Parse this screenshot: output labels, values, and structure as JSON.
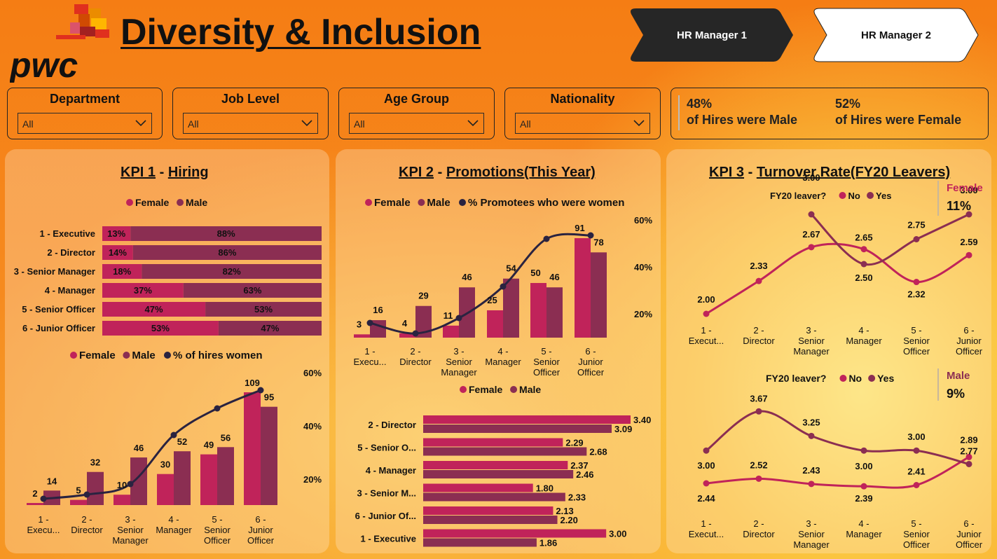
{
  "header": {
    "title": "Diversity & Inclusion",
    "logo_text": "pwc",
    "nav": [
      {
        "label": "HR Manager 1",
        "active": true
      },
      {
        "label": "HR Manager 2",
        "active": false
      }
    ]
  },
  "filters": [
    {
      "label": "Department",
      "value": "All"
    },
    {
      "label": "Job Level",
      "value": "All"
    },
    {
      "label": "Age Group",
      "value": "All"
    },
    {
      "label": "Nationality",
      "value": "All"
    }
  ],
  "hires_summary": {
    "male_pct": "48%",
    "male_text": "of Hires were Male",
    "female_pct": "52%",
    "female_text": "of Hires were Female"
  },
  "kpi1": {
    "title_prefix": "KPI 1",
    "title_sep": " - ",
    "title_main": "Hiring"
  },
  "kpi2": {
    "title_prefix": "KPI 2",
    "title_sep": " - ",
    "title_main": "Promotions(This Year)"
  },
  "kpi3": {
    "title_prefix": "KPI 3",
    "title_sep": " - ",
    "title_main": "Turnover Rate(FY20 Leavers)"
  },
  "colors": {
    "female": "#c0235a",
    "male": "#8b2e52",
    "line": "#2a2340",
    "no": "#c0235a",
    "yes": "#8b2e52"
  },
  "chart_data": [
    {
      "id": "hiring_share",
      "type": "bar",
      "stacked": "100%",
      "orientation": "horizontal",
      "legend": [
        "Female",
        "Male"
      ],
      "categories": [
        "1 - Executive",
        "2 - Director",
        "3 - Senior Manager",
        "4 - Manager",
        "5 - Senior Officer",
        "6 - Junior Officer"
      ],
      "series": [
        {
          "name": "Female",
          "values": [
            13,
            14,
            18,
            37,
            47,
            53
          ],
          "labels": [
            "13%",
            "14%",
            "18%",
            "37%",
            "47%",
            "53%"
          ]
        },
        {
          "name": "Male",
          "values": [
            88,
            86,
            82,
            63,
            53,
            47
          ],
          "labels": [
            "88%",
            "86%",
            "82%",
            "63%",
            "53%",
            "47%"
          ]
        }
      ]
    },
    {
      "id": "hiring_counts",
      "type": "bar",
      "legend": [
        "Female",
        "Male",
        "% of hires women"
      ],
      "categories": [
        [
          "1 -",
          "Execu..."
        ],
        [
          "2 -",
          "Director"
        ],
        [
          "3 -",
          "Senior",
          "Manager"
        ],
        [
          "4 -",
          "Manager"
        ],
        [
          "5 -",
          "Senior",
          "Officer"
        ],
        [
          "6 -",
          "Junior",
          "Officer"
        ]
      ],
      "series": [
        {
          "name": "Female",
          "values": [
            2,
            5,
            10,
            30,
            49,
            109
          ]
        },
        {
          "name": "Male",
          "values": [
            14,
            32,
            46,
            52,
            56,
            95
          ]
        },
        {
          "name": "% of hires women",
          "type": "line",
          "axis": "right",
          "values": [
            13,
            14,
            18,
            37,
            47,
            53
          ]
        }
      ],
      "y_right_ticks": [
        "20%",
        "40%",
        "60%"
      ]
    },
    {
      "id": "promotions_counts",
      "type": "bar",
      "legend": [
        "Female",
        "Male",
        "% Promotees who were women"
      ],
      "categories": [
        [
          "1 -",
          "Execu..."
        ],
        [
          "2 -",
          "Director"
        ],
        [
          "3 -",
          "Senior",
          "Manager"
        ],
        [
          "4 -",
          "Manager"
        ],
        [
          "5 -",
          "Senior",
          "Officer"
        ],
        [
          "6 -",
          "Junior",
          "Officer"
        ]
      ],
      "series": [
        {
          "name": "Female",
          "values": [
            3,
            4,
            11,
            25,
            50,
            91
          ]
        },
        {
          "name": "Male",
          "values": [
            16,
            29,
            46,
            54,
            46,
            78
          ]
        },
        {
          "name": "% Promotees who were women",
          "type": "line",
          "axis": "right",
          "values": [
            16,
            12,
            19,
            32,
            52,
            54
          ]
        }
      ],
      "y_right_ticks": [
        "20%",
        "40%",
        "60%"
      ]
    },
    {
      "id": "promotions_years",
      "type": "bar",
      "orientation": "horizontal",
      "legend": [
        "Female",
        "Male"
      ],
      "categories": [
        "2 - Director",
        "5 - Senior O...",
        "4 - Manager",
        "3 - Senior M...",
        "6 - Junior Of...",
        "1 - Executive"
      ],
      "series": [
        {
          "name": "Female",
          "values": [
            3.4,
            2.29,
            2.37,
            1.8,
            2.13,
            3.0
          ],
          "labels": [
            "3.40",
            "2.29",
            "2.37",
            "1.80",
            "2.13",
            "3.00"
          ]
        },
        {
          "name": "Male",
          "values": [
            3.09,
            2.68,
            2.46,
            2.33,
            2.2,
            1.86
          ],
          "labels": [
            "3.09",
            "2.68",
            "2.46",
            "2.33",
            "2.20",
            "1.86"
          ]
        }
      ]
    },
    {
      "id": "turnover_female",
      "type": "line",
      "legend_title": "FY20 leaver?",
      "legend": [
        "No",
        "Yes"
      ],
      "categories": [
        [
          "1 -",
          "Execut..."
        ],
        [
          "2 -",
          "Director"
        ],
        [
          "3 -",
          "Senior",
          "Manager"
        ],
        [
          "4 -",
          "Manager"
        ],
        [
          "5 -",
          "Senior",
          "Officer"
        ],
        [
          "6 -",
          "Junior",
          "Officer"
        ]
      ],
      "series": [
        {
          "name": "No",
          "values": [
            2.0,
            2.33,
            2.67,
            2.65,
            2.32,
            2.59
          ],
          "labels": [
            "2.00",
            "2.33",
            "2.67",
            "2.65",
            "2.32",
            "2.59"
          ]
        },
        {
          "name": "Yes",
          "values": [
            null,
            null,
            3.0,
            2.5,
            2.75,
            3.0
          ],
          "labels": [
            "",
            "",
            "3.00",
            "2.50",
            "2.75",
            "3.00"
          ]
        }
      ],
      "card": {
        "label": "Female",
        "value": "11%"
      }
    },
    {
      "id": "turnover_male",
      "type": "line",
      "legend_title": "FY20 leaver?",
      "legend": [
        "No",
        "Yes"
      ],
      "categories": [
        [
          "1 -",
          "Execut..."
        ],
        [
          "2 -",
          "Director"
        ],
        [
          "3 -",
          "Senior",
          "Manager"
        ],
        [
          "4 -",
          "Manager"
        ],
        [
          "5 -",
          "Senior",
          "Officer"
        ],
        [
          "6 -",
          "Junior",
          "Officer"
        ]
      ],
      "series": [
        {
          "name": "No",
          "values": [
            2.44,
            2.52,
            2.43,
            2.39,
            2.41,
            2.89
          ],
          "labels": [
            "2.44",
            "2.52",
            "2.43",
            "2.39",
            "2.41",
            "2.89"
          ]
        },
        {
          "name": "Yes",
          "values": [
            3.0,
            3.67,
            3.25,
            3.0,
            3.0,
            2.77
          ],
          "labels": [
            "3.00",
            "3.67",
            "3.25",
            "3.00",
            "3.00",
            "2.77"
          ]
        }
      ],
      "card": {
        "label": "Male",
        "value": "9%"
      }
    }
  ]
}
